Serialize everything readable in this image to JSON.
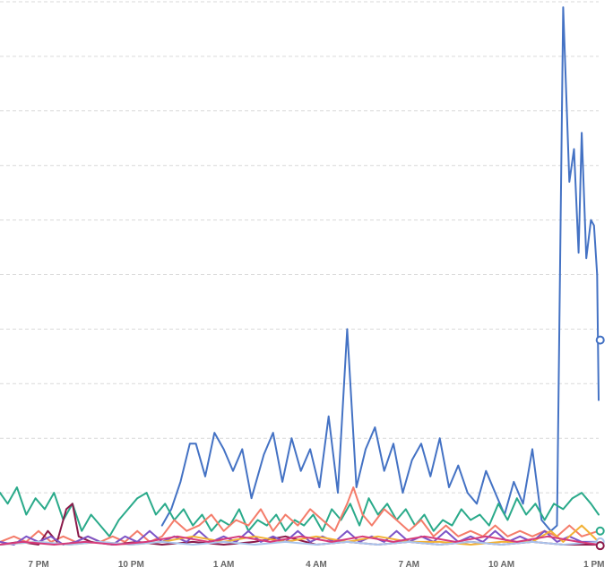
{
  "chart_data": {
    "type": "line",
    "title": "",
    "xlabel": "",
    "ylabel": "",
    "x_ticks": [
      "7 PM",
      "10 PM",
      "1 AM",
      "4 AM",
      "7 AM",
      "10 AM",
      "1 PM"
    ],
    "x_range_hours": [
      17.75,
      37.15
    ],
    "ylim": [
      0,
      100
    ],
    "gridlines_y": [
      10,
      20,
      30,
      40,
      50,
      60,
      70,
      80,
      90,
      100
    ],
    "grid": true,
    "legend": "none",
    "series": [
      {
        "color": "#4472c4",
        "points": [
          [
            23.0,
            4
          ],
          [
            23.3,
            7
          ],
          [
            23.6,
            12
          ],
          [
            23.9,
            19
          ],
          [
            24.1,
            19
          ],
          [
            24.4,
            13
          ],
          [
            24.7,
            21
          ],
          [
            25.0,
            18
          ],
          [
            25.3,
            14
          ],
          [
            25.6,
            18
          ],
          [
            25.9,
            9
          ],
          [
            26.3,
            17
          ],
          [
            26.6,
            21
          ],
          [
            26.9,
            12
          ],
          [
            27.2,
            20
          ],
          [
            27.5,
            14
          ],
          [
            27.8,
            18
          ],
          [
            28.1,
            11
          ],
          [
            28.4,
            24
          ],
          [
            28.7,
            10
          ],
          [
            29.0,
            40
          ],
          [
            29.3,
            11
          ],
          [
            29.6,
            18
          ],
          [
            29.9,
            22
          ],
          [
            30.2,
            14
          ],
          [
            30.5,
            19
          ],
          [
            30.8,
            10
          ],
          [
            31.1,
            16
          ],
          [
            31.4,
            19
          ],
          [
            31.7,
            13
          ],
          [
            32.0,
            20
          ],
          [
            32.3,
            11
          ],
          [
            32.6,
            15
          ],
          [
            32.9,
            10
          ],
          [
            33.2,
            8
          ],
          [
            33.5,
            14
          ],
          [
            33.8,
            10
          ],
          [
            34.1,
            6
          ],
          [
            34.4,
            12
          ],
          [
            34.7,
            8
          ],
          [
            35.0,
            18
          ],
          [
            35.3,
            5
          ],
          [
            35.6,
            3
          ],
          [
            35.8,
            4
          ],
          [
            36.0,
            99
          ],
          [
            36.2,
            67
          ],
          [
            36.35,
            73
          ],
          [
            36.5,
            54
          ],
          [
            36.6,
            76
          ],
          [
            36.75,
            53
          ],
          [
            36.9,
            60
          ],
          [
            37.0,
            59
          ],
          [
            37.1,
            50
          ],
          [
            37.15,
            27
          ]
        ]
      },
      {
        "color": "#2aaa8a",
        "points": [
          [
            17.75,
            10
          ],
          [
            18.0,
            8
          ],
          [
            18.3,
            11
          ],
          [
            18.6,
            6
          ],
          [
            18.9,
            9
          ],
          [
            19.2,
            7
          ],
          [
            19.5,
            10
          ],
          [
            19.8,
            5
          ],
          [
            20.1,
            8
          ],
          [
            20.4,
            3
          ],
          [
            20.7,
            6
          ],
          [
            21.0,
            4
          ],
          [
            21.3,
            2
          ],
          [
            21.6,
            5
          ],
          [
            21.9,
            7
          ],
          [
            22.2,
            9
          ],
          [
            22.5,
            10
          ],
          [
            22.8,
            6
          ],
          [
            23.1,
            8
          ],
          [
            23.4,
            5
          ],
          [
            23.7,
            7
          ],
          [
            24.0,
            4
          ],
          [
            24.3,
            6
          ],
          [
            24.6,
            3
          ],
          [
            24.9,
            5
          ],
          [
            25.2,
            4
          ],
          [
            25.5,
            7
          ],
          [
            25.8,
            3
          ],
          [
            26.1,
            5
          ],
          [
            26.4,
            4
          ],
          [
            26.7,
            6
          ],
          [
            27.0,
            3
          ],
          [
            27.3,
            5
          ],
          [
            27.6,
            4
          ],
          [
            27.9,
            6
          ],
          [
            28.2,
            3
          ],
          [
            28.5,
            7
          ],
          [
            28.8,
            5
          ],
          [
            29.1,
            8
          ],
          [
            29.4,
            4
          ],
          [
            29.7,
            9
          ],
          [
            30.0,
            6
          ],
          [
            30.3,
            8
          ],
          [
            30.6,
            5
          ],
          [
            30.9,
            7
          ],
          [
            31.2,
            4
          ],
          [
            31.5,
            6
          ],
          [
            31.8,
            3
          ],
          [
            32.1,
            5
          ],
          [
            32.4,
            4
          ],
          [
            32.7,
            7
          ],
          [
            33.0,
            5
          ],
          [
            33.3,
            6
          ],
          [
            33.6,
            4
          ],
          [
            33.9,
            8
          ],
          [
            34.2,
            5
          ],
          [
            34.5,
            9
          ],
          [
            34.8,
            6
          ],
          [
            35.1,
            8
          ],
          [
            35.4,
            5
          ],
          [
            35.7,
            8
          ],
          [
            36.0,
            7
          ],
          [
            36.3,
            9
          ],
          [
            36.6,
            10
          ],
          [
            36.9,
            8
          ],
          [
            37.15,
            6
          ]
        ]
      },
      {
        "color": "#f47c6a",
        "points": [
          [
            17.75,
            1
          ],
          [
            18.2,
            2
          ],
          [
            18.6,
            1
          ],
          [
            19.0,
            3
          ],
          [
            19.4,
            1
          ],
          [
            19.8,
            2
          ],
          [
            20.2,
            1
          ],
          [
            20.6,
            2
          ],
          [
            21.0,
            1
          ],
          [
            21.4,
            2
          ],
          [
            21.8,
            1
          ],
          [
            22.2,
            3
          ],
          [
            22.6,
            1
          ],
          [
            23.0,
            2
          ],
          [
            23.4,
            5
          ],
          [
            23.8,
            3
          ],
          [
            24.2,
            4
          ],
          [
            24.6,
            6
          ],
          [
            25.0,
            3
          ],
          [
            25.4,
            5
          ],
          [
            25.8,
            4
          ],
          [
            26.2,
            7
          ],
          [
            26.6,
            3
          ],
          [
            27.0,
            6
          ],
          [
            27.4,
            4
          ],
          [
            27.8,
            7
          ],
          [
            28.2,
            5
          ],
          [
            28.6,
            3
          ],
          [
            29.0,
            8
          ],
          [
            29.2,
            11
          ],
          [
            29.5,
            6
          ],
          [
            29.8,
            4
          ],
          [
            30.2,
            7
          ],
          [
            30.6,
            5
          ],
          [
            31.0,
            3
          ],
          [
            31.4,
            5
          ],
          [
            31.8,
            2
          ],
          [
            32.2,
            4
          ],
          [
            32.6,
            2
          ],
          [
            33.0,
            3
          ],
          [
            33.4,
            2
          ],
          [
            33.8,
            4
          ],
          [
            34.2,
            2
          ],
          [
            34.6,
            3
          ],
          [
            35.0,
            2
          ],
          [
            35.4,
            3
          ],
          [
            35.8,
            2
          ],
          [
            36.2,
            4
          ],
          [
            36.6,
            2
          ],
          [
            37.15,
            3
          ]
        ]
      },
      {
        "color": "#8b1a4a",
        "points": [
          [
            17.75,
            0.5
          ],
          [
            18.4,
            1
          ],
          [
            19.0,
            0.5
          ],
          [
            19.3,
            3
          ],
          [
            19.6,
            1
          ],
          [
            19.9,
            7
          ],
          [
            20.1,
            8
          ],
          [
            20.3,
            2
          ],
          [
            20.7,
            1
          ],
          [
            21.4,
            0.5
          ],
          [
            22.2,
            1
          ],
          [
            23.0,
            0.5
          ],
          [
            24.0,
            1
          ],
          [
            25.0,
            0.5
          ],
          [
            26.0,
            1
          ],
          [
            27.0,
            2
          ],
          [
            28.0,
            0.5
          ],
          [
            29.0,
            1
          ],
          [
            30.0,
            0.5
          ],
          [
            31.0,
            1
          ],
          [
            32.0,
            0.5
          ],
          [
            33.0,
            1
          ],
          [
            34.0,
            0.5
          ],
          [
            35.0,
            1
          ],
          [
            36.0,
            0.5
          ],
          [
            37.15,
            0.5
          ]
        ]
      },
      {
        "color": "#7d55c7",
        "points": [
          [
            17.75,
            1
          ],
          [
            18.2,
            0.5
          ],
          [
            18.6,
            2
          ],
          [
            19.0,
            1
          ],
          [
            19.4,
            2
          ],
          [
            19.8,
            0.5
          ],
          [
            20.2,
            1
          ],
          [
            20.6,
            2
          ],
          [
            21.0,
            1
          ],
          [
            21.4,
            0.5
          ],
          [
            21.8,
            2
          ],
          [
            22.2,
            1
          ],
          [
            22.6,
            3
          ],
          [
            23.0,
            1
          ],
          [
            23.4,
            2
          ],
          [
            23.8,
            1
          ],
          [
            24.2,
            3
          ],
          [
            24.6,
            1
          ],
          [
            25.0,
            2
          ],
          [
            25.4,
            1
          ],
          [
            25.8,
            3
          ],
          [
            26.2,
            1
          ],
          [
            26.6,
            2
          ],
          [
            27.0,
            1
          ],
          [
            27.4,
            3
          ],
          [
            27.8,
            1
          ],
          [
            28.2,
            2
          ],
          [
            28.6,
            1
          ],
          [
            29.0,
            3
          ],
          [
            29.4,
            1
          ],
          [
            29.8,
            2
          ],
          [
            30.2,
            1
          ],
          [
            30.6,
            3
          ],
          [
            31.0,
            1
          ],
          [
            31.4,
            2
          ],
          [
            31.8,
            1
          ],
          [
            32.2,
            3
          ],
          [
            32.6,
            1
          ],
          [
            33.0,
            2
          ],
          [
            33.4,
            1
          ],
          [
            33.8,
            3
          ],
          [
            34.2,
            1
          ],
          [
            34.6,
            2
          ],
          [
            35.0,
            1
          ],
          [
            35.4,
            3
          ],
          [
            35.8,
            1
          ],
          [
            36.2,
            2
          ],
          [
            36.6,
            1
          ],
          [
            37.15,
            1
          ]
        ]
      },
      {
        "color": "#f2b134",
        "points": [
          [
            17.75,
            0.5
          ],
          [
            19.0,
            1
          ],
          [
            20.0,
            0.5
          ],
          [
            21.0,
            1
          ],
          [
            22.0,
            0.5
          ],
          [
            23.0,
            1
          ],
          [
            24.0,
            2
          ],
          [
            25.0,
            1
          ],
          [
            26.0,
            2
          ],
          [
            27.0,
            1
          ],
          [
            28.0,
            2
          ],
          [
            29.0,
            1
          ],
          [
            30.0,
            2
          ],
          [
            31.0,
            1
          ],
          [
            32.0,
            1
          ],
          [
            33.0,
            0.5
          ],
          [
            34.0,
            1
          ],
          [
            35.0,
            1
          ],
          [
            35.6,
            3
          ],
          [
            36.0,
            1
          ],
          [
            36.6,
            4
          ],
          [
            37.15,
            1
          ]
        ]
      },
      {
        "color": "#a9c4ec",
        "points": [
          [
            17.75,
            0.5
          ],
          [
            19.0,
            1
          ],
          [
            20.0,
            0.5
          ],
          [
            21.0,
            1
          ],
          [
            22.0,
            0.5
          ],
          [
            23.0,
            1
          ],
          [
            24.0,
            0.5
          ],
          [
            25.0,
            1
          ],
          [
            26.0,
            0.5
          ],
          [
            27.0,
            1
          ],
          [
            28.0,
            0.5
          ],
          [
            29.0,
            1
          ],
          [
            30.0,
            0.5
          ],
          [
            31.0,
            1
          ],
          [
            32.0,
            0.5
          ],
          [
            33.0,
            1
          ],
          [
            34.0,
            0.5
          ],
          [
            35.0,
            1
          ],
          [
            36.0,
            0.5
          ],
          [
            37.15,
            1
          ]
        ]
      },
      {
        "color": "#d63a7a",
        "points": [
          [
            17.75,
            0.5
          ],
          [
            18.5,
            1
          ],
          [
            19.5,
            0.5
          ],
          [
            20.5,
            1
          ],
          [
            21.5,
            0.5
          ],
          [
            22.5,
            1
          ],
          [
            23.5,
            2
          ],
          [
            24.5,
            1
          ],
          [
            25.5,
            2
          ],
          [
            26.5,
            1
          ],
          [
            27.5,
            2
          ],
          [
            28.5,
            1
          ],
          [
            29.5,
            2
          ],
          [
            30.5,
            1
          ],
          [
            31.5,
            2
          ],
          [
            32.5,
            1
          ],
          [
            33.5,
            2
          ],
          [
            34.5,
            1
          ],
          [
            35.5,
            2
          ],
          [
            36.5,
            1
          ],
          [
            37.15,
            0.5
          ]
        ]
      }
    ],
    "end_markers": [
      {
        "color": "#4472c4",
        "x": 37.2,
        "y": 38
      },
      {
        "color": "#2aaa8a",
        "x": 37.2,
        "y": 3
      },
      {
        "color": "#a9c4ec",
        "x": 37.2,
        "y": 1
      },
      {
        "color": "#8b1a4a",
        "x": 37.2,
        "y": 0.3
      }
    ]
  }
}
